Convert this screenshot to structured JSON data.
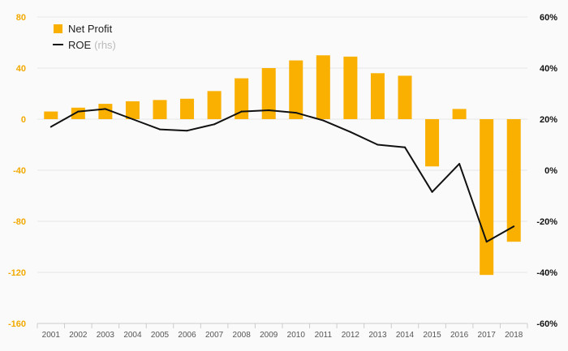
{
  "chart_data": {
    "type": "bar",
    "categories": [
      "2001",
      "2002",
      "2003",
      "2004",
      "2005",
      "2006",
      "2007",
      "2008",
      "2009",
      "2010",
      "2011",
      "2012",
      "2013",
      "2014",
      "2015",
      "2016",
      "2017",
      "2018"
    ],
    "series": [
      {
        "name": "Net Profit",
        "type": "bar",
        "axis": "left",
        "color": "#f9b000",
        "values": [
          6,
          9,
          12,
          14,
          15,
          16,
          22,
          32,
          40,
          46,
          50,
          49,
          36,
          34,
          -37,
          8,
          -122,
          -96
        ]
      },
      {
        "name": "ROE",
        "name_suffix": "(rhs)",
        "type": "line",
        "axis": "right",
        "color": "#111111",
        "values": [
          17,
          23,
          24,
          20,
          16,
          15.5,
          18,
          23,
          23.5,
          22.5,
          19.5,
          15,
          10,
          9,
          -8.5,
          2.5,
          -28,
          -22
        ]
      }
    ],
    "left_axis": {
      "ylim": [
        -160,
        80
      ],
      "ticks": [
        80,
        40,
        0,
        -40,
        -80,
        -120,
        -160
      ],
      "tick_labels": [
        "80",
        "40",
        "0",
        "-40",
        "-80",
        "-120",
        "-160"
      ],
      "color": "#f2a900"
    },
    "right_axis": {
      "ylim": [
        -60,
        60
      ],
      "ticks": [
        60,
        40,
        20,
        0,
        -20,
        -40,
        -60
      ],
      "tick_labels": [
        "60%",
        "40%",
        "20%",
        "0%",
        "-20%",
        "-40%",
        "-60%"
      ],
      "color": "#111111"
    },
    "grid": true,
    "legend_position": "top-left"
  }
}
